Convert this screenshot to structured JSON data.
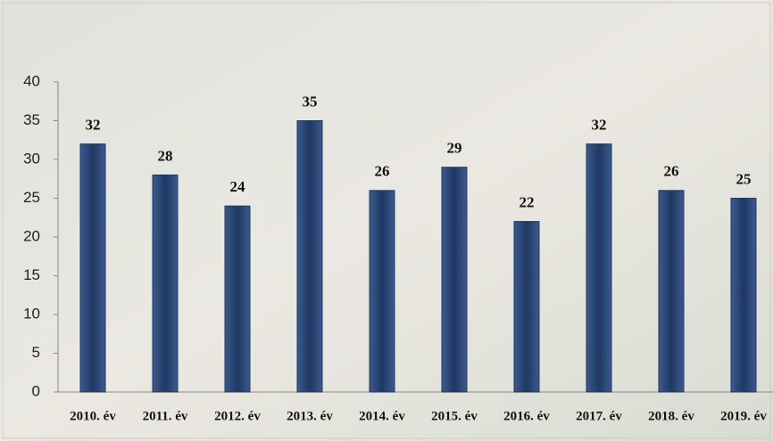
{
  "chart_data": {
    "type": "bar",
    "categories": [
      "2010. év",
      "2011. év",
      "2012. év",
      "2013. év",
      "2014. év",
      "2015. év",
      "2016. év",
      "2017. év",
      "2018. év",
      "2019. év"
    ],
    "values": [
      32,
      28,
      24,
      35,
      26,
      29,
      22,
      32,
      26,
      25
    ],
    "color": "#1f3864",
    "ylim": [
      0,
      40
    ],
    "yticks": [
      0,
      5,
      10,
      15,
      20,
      25,
      30,
      35,
      40
    ]
  }
}
